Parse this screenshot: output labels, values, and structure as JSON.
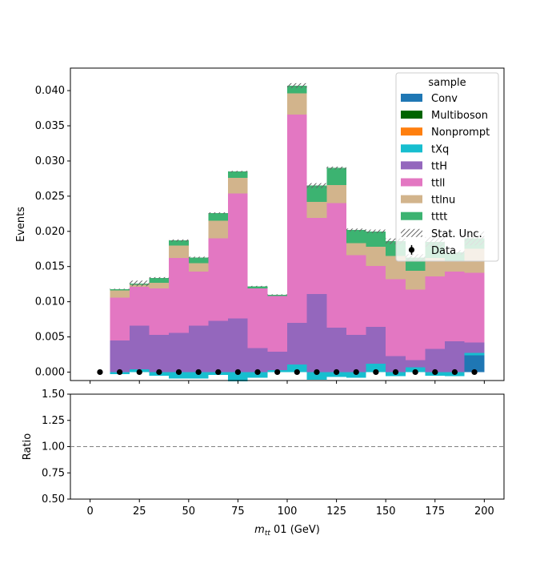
{
  "chart_data": [
    {
      "type": "bar",
      "stacked": true,
      "xlabel_math": "m",
      "xlabel_sub": "tt",
      "xlabel_rest": " 01 (GeV)",
      "ylabel": "Events",
      "xlim": [
        -10,
        210
      ],
      "ylim": [
        -0.0012,
        0.0432
      ],
      "xticks": [
        0,
        25,
        50,
        75,
        100,
        125,
        150,
        175,
        200
      ],
      "yticks": [
        0.0,
        0.005,
        0.01,
        0.015,
        0.02,
        0.025,
        0.03,
        0.035,
        0.04
      ],
      "ytick_labels": [
        "0.000",
        "0.005",
        "0.010",
        "0.015",
        "0.020",
        "0.025",
        "0.030",
        "0.035",
        "0.040"
      ],
      "legend": {
        "title": "sample",
        "placement": "top-right",
        "entries": [
          "Conv",
          "Multiboson",
          "Nonprompt",
          "tXq",
          "ttH",
          "ttll",
          "ttlnu",
          "tttt",
          "Stat. Unc.",
          "Data"
        ]
      },
      "bin_edges": [
        10,
        20,
        30,
        40,
        50,
        60,
        70,
        80,
        90,
        100,
        110,
        120,
        130,
        140,
        150,
        160,
        170,
        180,
        190,
        200
      ],
      "series": [
        {
          "name": "Conv",
          "color": "#1f77b4",
          "values": [
            0,
            0,
            0,
            0,
            0,
            0,
            0,
            0,
            0,
            0,
            0,
            0,
            0,
            0,
            0,
            0,
            0,
            0,
            0.0024
          ]
        },
        {
          "name": "Multiboson",
          "color": "#006400",
          "values": [
            0,
            0,
            0,
            0,
            0,
            0,
            0,
            0,
            0,
            0,
            0,
            0,
            0,
            0,
            0,
            0,
            0,
            0,
            0
          ]
        },
        {
          "name": "Nonprompt",
          "color": "#ff7f0e",
          "values": [
            0,
            0,
            0,
            0,
            0,
            0,
            0,
            0,
            0,
            0,
            0,
            0,
            0,
            0,
            0,
            0,
            0,
            0,
            0
          ]
        },
        {
          "name": "tXq",
          "color": "#17becf",
          "values": [
            -0.0003,
            0.0004,
            -0.0005,
            -0.0009,
            -0.0009,
            -0.0004,
            -0.0013,
            -0.0008,
            0.0003,
            0.0011,
            -0.0011,
            -0.0007,
            -0.0008,
            0.0012,
            -0.0006,
            0.0007,
            -0.0005,
            -0.0006,
            0.0003
          ]
        },
        {
          "name": "ttH",
          "color": "#9467bd",
          "values": [
            0.0045,
            0.0062,
            0.0053,
            0.0056,
            0.0066,
            0.0073,
            0.0076,
            0.0034,
            0.0026,
            0.0059,
            0.0111,
            0.0063,
            0.0053,
            0.0052,
            0.0023,
            0.001,
            0.0033,
            0.0044,
            0.0015
          ]
        },
        {
          "name": "ttll",
          "color": "#e377c2",
          "values": [
            0.0061,
            0.0055,
            0.0066,
            0.0106,
            0.0077,
            0.0117,
            0.0178,
            0.0085,
            0.0079,
            0.0296,
            0.0108,
            0.0177,
            0.0113,
            0.0087,
            0.0109,
            0.01,
            0.0103,
            0.0099,
            0.0099
          ]
        },
        {
          "name": "ttlnu",
          "color": "#d2b48c",
          "values": [
            0.001,
            0.0003,
            0.0008,
            0.0018,
            0.0012,
            0.0025,
            0.0022,
            0.0,
            0.0,
            0.003,
            0.0023,
            0.0026,
            0.0017,
            0.0027,
            0.0033,
            0.0027,
            0.0026,
            0.0015,
            0.0034
          ]
        },
        {
          "name": "tttt",
          "color": "#3cb371",
          "values": [
            0.0002,
            0.0002,
            0.0007,
            0.0007,
            0.0008,
            0.0011,
            0.0009,
            0.0003,
            0.0002,
            0.0011,
            0.0023,
            0.0024,
            0.0019,
            0.0022,
            0.0021,
            0.0019,
            0.0023,
            0.0012,
            0.0015
          ]
        }
      ],
      "stat_unc": [
        0.0001,
        0.0008,
        0.0002,
        0.0003,
        0.0002,
        0.0002,
        0.0002,
        0.0001,
        0.0001,
        0.0007,
        0.0007,
        0.0004,
        0.0004,
        0.0005,
        0.0008,
        0.0009,
        0.0014,
        0.0006,
        0.002
      ],
      "data": {
        "x": [
          5,
          15,
          25,
          35,
          45,
          55,
          65,
          75,
          85,
          95,
          105,
          115,
          125,
          135,
          145,
          155,
          165,
          175,
          185,
          195
        ],
        "y": [
          0,
          0,
          0,
          0,
          0,
          0,
          0,
          0,
          0,
          0,
          0,
          0,
          0,
          0,
          0,
          0,
          0,
          0,
          0,
          0
        ]
      }
    },
    {
      "type": "line",
      "ylabel": "Ratio",
      "xlim": [
        -10,
        210
      ],
      "ylim": [
        0.5,
        1.5
      ],
      "xticks": [
        0,
        25,
        50,
        75,
        100,
        125,
        150,
        175,
        200
      ],
      "xtick_labels": [
        "0",
        "25",
        "50",
        "75",
        "100",
        "125",
        "150",
        "175",
        "200"
      ],
      "yticks": [
        0.5,
        0.75,
        1.0,
        1.25,
        1.5
      ],
      "ytick_labels": [
        "0.50",
        "0.75",
        "1.00",
        "1.25",
        "1.50"
      ],
      "reference_line": 1.0
    }
  ]
}
